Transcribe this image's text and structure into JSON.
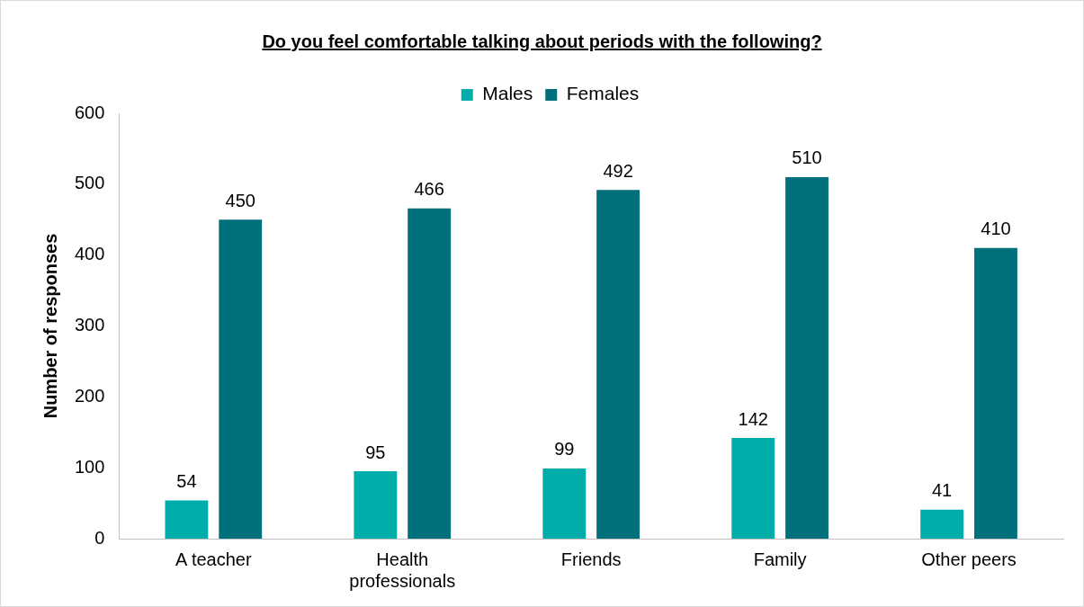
{
  "chart_data": {
    "type": "bar",
    "title": "Do you feel comfortable talking about periods with the following?",
    "ylabel": "Number of responses",
    "categories": [
      "A teacher",
      "Health professionals",
      "Friends",
      "Family",
      "Other peers"
    ],
    "series": [
      {
        "name": "Males",
        "color": "#00ada9",
        "values": [
          54,
          95,
          99,
          142,
          41
        ]
      },
      {
        "name": "Females",
        "color": "#00707a",
        "values": [
          450,
          466,
          492,
          510,
          410
        ]
      }
    ],
    "ylim": [
      0,
      600
    ],
    "yticks": [
      0,
      100,
      200,
      300,
      400,
      500,
      600
    ],
    "grid": false,
    "legend": "top",
    "data_labels": true
  }
}
